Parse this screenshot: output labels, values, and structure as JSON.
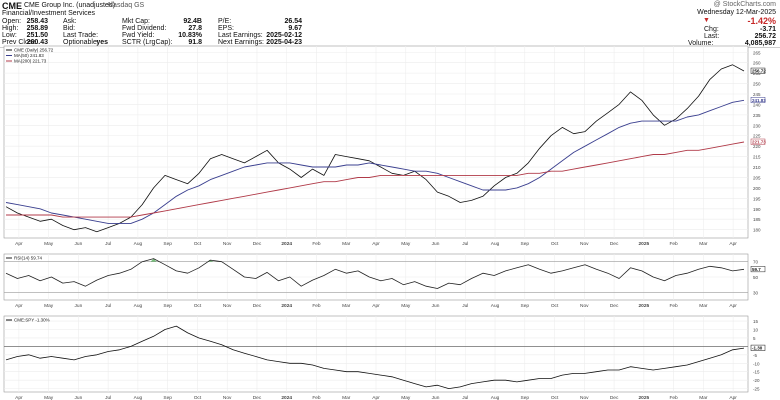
{
  "header": {
    "symbol": "CME",
    "company": "CME Group Inc. (unadjusted)",
    "exchange": "Nasdaq GS",
    "sector": "Financial/Investment Services",
    "date": "Wednesday 12-Mar-2025",
    "change_pct": "-1.42%",
    "chg_label": "Chg:",
    "chg": "-3.71",
    "last_label": "Last:",
    "last": "256.72",
    "volume_label": "Volume:",
    "volume": "4,085,987",
    "watermark": "@ StockCharts.com",
    "col1": [
      [
        "Open:",
        "258.43"
      ],
      [
        "High:",
        "258.89"
      ],
      [
        "Low:",
        "251.50"
      ],
      [
        "Prev Close:",
        "260.43"
      ]
    ],
    "col2": [
      [
        "Ask:",
        ""
      ],
      [
        "Bid:",
        ""
      ],
      [
        "Last Trade:",
        ""
      ],
      [
        "Optionable:",
        "yes"
      ]
    ],
    "col3": [
      [
        "Mkt Cap:",
        "92.4B"
      ],
      [
        "Fwd Dividend:",
        "27.8"
      ],
      [
        "Fwd Yield:",
        "10.83%"
      ],
      [
        "SCTR (LrgCap):",
        "91.8"
      ]
    ],
    "col4": [
      [
        "P/E:",
        "26.54"
      ],
      [
        "EPS:",
        "9.67"
      ],
      [
        "Last Earnings:",
        "2025-02-12"
      ],
      [
        "Next Earnings:",
        "2025-04-23"
      ]
    ]
  },
  "chart_data": [
    {
      "type": "line",
      "panel": "price",
      "legend": [
        "CME (Daily) 256.72",
        "MA(50) 241.83",
        "MA(200) 221.73"
      ],
      "y_ticks": [
        180,
        185,
        190,
        195,
        200,
        205,
        210,
        215,
        220,
        225,
        230,
        235,
        240,
        245,
        250,
        255,
        260,
        265
      ],
      "ylim": [
        176,
        268
      ],
      "x_ticks": [
        "Apr",
        "May",
        "Jun",
        "Jul",
        "Aug",
        "Sep",
        "Oct",
        "Nov",
        "Dec",
        "2024",
        "Feb",
        "Mar",
        "Apr",
        "May",
        "Jun",
        "Jul",
        "Aug",
        "Sep",
        "Oct",
        "Nov",
        "Dec",
        "2025",
        "Feb",
        "Mar",
        "Apr"
      ],
      "last_labels": [
        "256.72",
        "241.83",
        "221.73"
      ],
      "series": [
        {
          "name": "CME (Daily)",
          "color": "#111111",
          "values": [
            191,
            188,
            186,
            184,
            185,
            182,
            180,
            181,
            179,
            181,
            183,
            186,
            192,
            200,
            206,
            204,
            202,
            207,
            214,
            216,
            214,
            212,
            215,
            218,
            212,
            209,
            205,
            209,
            206,
            216,
            215,
            214,
            213,
            210,
            207,
            206,
            208,
            204,
            198,
            196,
            193,
            194,
            196,
            201,
            205,
            207,
            212,
            219,
            225,
            229,
            226,
            227,
            232,
            236,
            240,
            246,
            242,
            235,
            230,
            233,
            238,
            244,
            252,
            257,
            259,
            256
          ]
        },
        {
          "name": "MA(50)",
          "color": "#3a3f8f",
          "values": [
            193,
            192,
            191,
            190,
            188,
            187,
            186,
            185,
            184,
            183,
            183,
            183,
            185,
            188,
            192,
            196,
            199,
            201,
            204,
            206,
            208,
            210,
            211,
            212,
            212,
            212,
            211,
            210,
            210,
            210,
            211,
            211,
            212,
            211,
            210,
            209,
            208,
            208,
            207,
            205,
            203,
            201,
            199,
            199,
            199,
            200,
            202,
            205,
            209,
            213,
            217,
            220,
            223,
            226,
            229,
            231,
            232,
            232,
            232,
            232,
            234,
            235,
            237,
            239,
            241,
            242
          ]
        },
        {
          "name": "MA(200)",
          "color": "#b03a48",
          "values": [
            187,
            187,
            187,
            187,
            187,
            186,
            186,
            186,
            186,
            186,
            186,
            186,
            187,
            188,
            189,
            190,
            191,
            192,
            193,
            194,
            195,
            196,
            197,
            198,
            199,
            200,
            201,
            202,
            203,
            203,
            204,
            205,
            205,
            206,
            206,
            206,
            206,
            206,
            206,
            206,
            206,
            206,
            206,
            206,
            206,
            206,
            207,
            207,
            208,
            208,
            209,
            210,
            211,
            212,
            213,
            214,
            215,
            216,
            216,
            217,
            218,
            218,
            219,
            220,
            221,
            222
          ]
        }
      ]
    },
    {
      "type": "line",
      "panel": "rsi",
      "legend": "RSI(14) 59.74",
      "y_ticks": [
        30,
        50,
        70
      ],
      "ylim": [
        20,
        80
      ],
      "last_label": "59.7",
      "series": [
        {
          "name": "RSI(14)",
          "color": "#222222",
          "values": [
            55,
            48,
            52,
            45,
            50,
            42,
            44,
            38,
            46,
            52,
            55,
            60,
            70,
            74,
            66,
            58,
            55,
            62,
            72,
            70,
            60,
            50,
            48,
            56,
            45,
            50,
            38,
            46,
            52,
            60,
            55,
            58,
            50,
            45,
            48,
            40,
            44,
            38,
            35,
            42,
            40,
            48,
            55,
            52,
            58,
            62,
            66,
            60,
            55,
            58,
            62,
            66,
            60,
            55,
            48,
            62,
            58,
            50,
            45,
            52,
            55,
            60,
            64,
            62,
            58,
            60
          ]
        }
      ]
    },
    {
      "type": "line",
      "panel": "relative",
      "legend": "CME:SPY -1.30%",
      "y_ticks": [
        15,
        10,
        5,
        0,
        -5,
        -10,
        -15,
        -20,
        -25
      ],
      "ylim": [
        -27,
        18
      ],
      "last_label": "-1.30",
      "series": [
        {
          "name": "CME:SPY",
          "color": "#111111",
          "values": [
            -8,
            -6,
            -5,
            -7,
            -6,
            -7,
            -8,
            -6,
            -5,
            -3,
            -2,
            0,
            3,
            6,
            10,
            12,
            8,
            5,
            3,
            1,
            -2,
            -4,
            -6,
            -8,
            -9,
            -10,
            -10,
            -11,
            -13,
            -14,
            -15,
            -15,
            -16,
            -17,
            -18,
            -20,
            -22,
            -24,
            -23,
            -25,
            -24,
            -22,
            -21,
            -20,
            -20,
            -21,
            -20,
            -19,
            -19,
            -17,
            -16,
            -16,
            -15,
            -14,
            -14,
            -12,
            -13,
            -14,
            -13,
            -12,
            -11,
            -9,
            -7,
            -5,
            -2,
            -1
          ]
        }
      ]
    }
  ]
}
